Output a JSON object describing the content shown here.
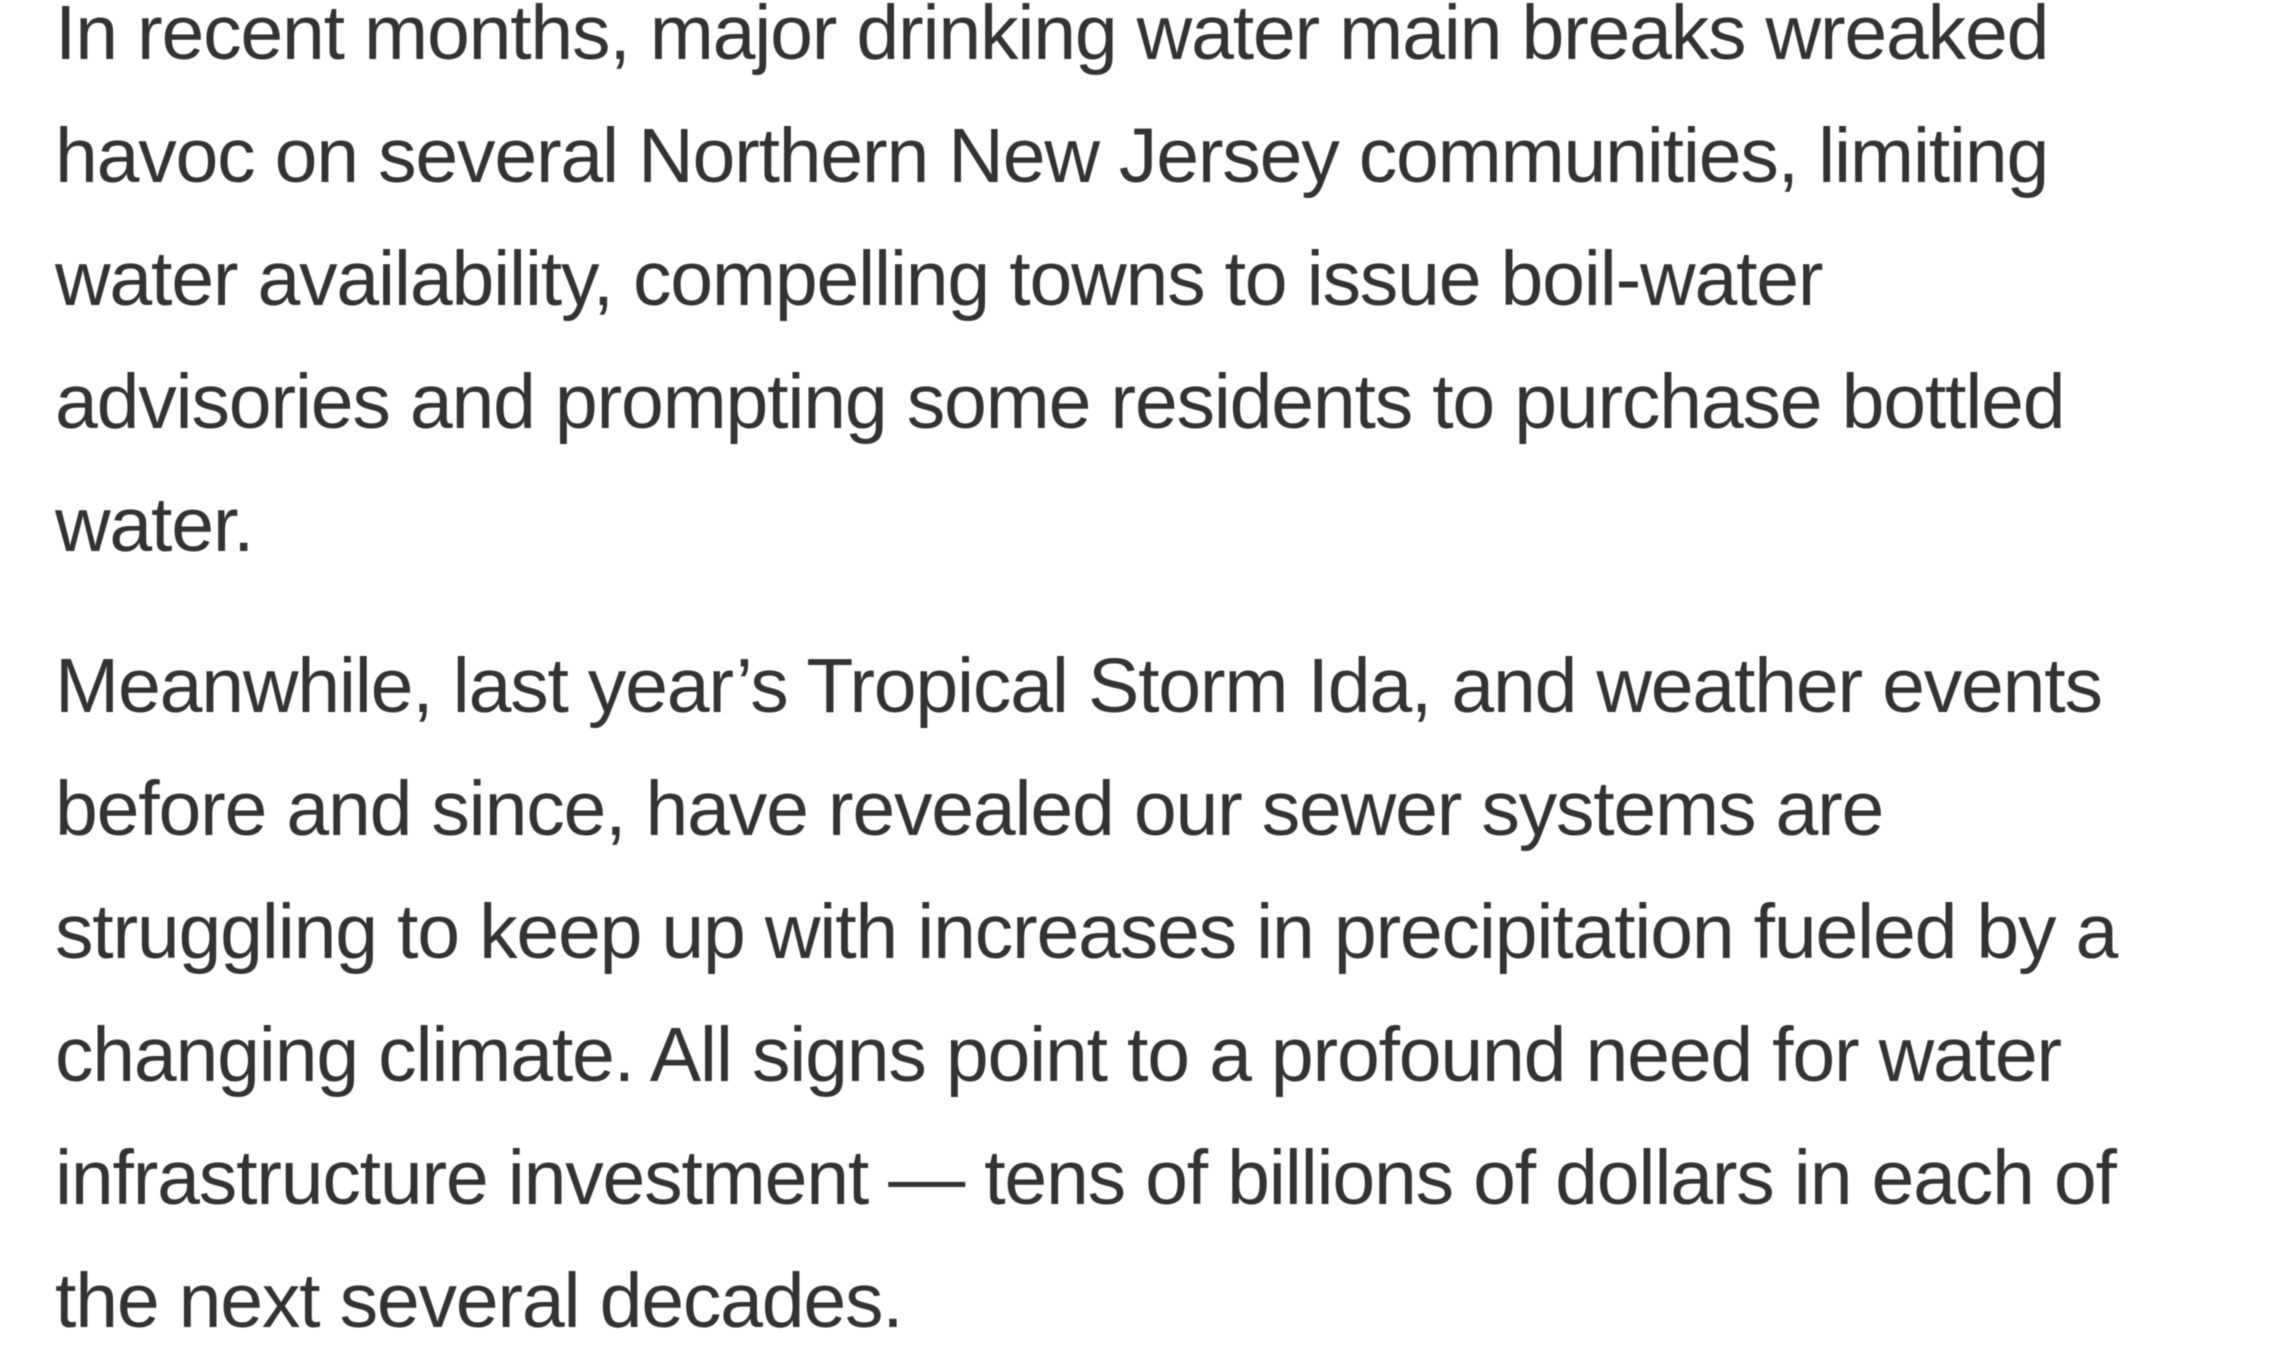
{
  "page": {
    "background_color": "#ffffff",
    "text_color": "#333333"
  },
  "article": {
    "paragraphs": [
      {
        "text": "In recent months, major drinking water main breaks wreaked havoc on several Northern New Jersey communities, limiting water availability, compelling towns to issue boil-water advisories and prompting some residents to purchase bottled water.",
        "lines": [
          "In recent months, major drinking water main breaks wreaked",
          "havoc on several Northern New Jersey communities, limiting",
          "water availability, compelling towns to issue boil-water",
          "advisories and prompting some residents to purchase bottled",
          "water."
        ]
      },
      {
        "text": "Meanwhile, last year’s Tropical Storm Ida, and weather events before and since, have revealed our sewer systems are struggling to keep up with increases in precipitation fueled by a changing climate. All signs point to a profound need for water infrastructure investment — tens of billions of dollars in each of the next several decades.",
        "lines": [
          "Meanwhile, last year’s Tropical Storm Ida, and weather events",
          "before and since, have revealed our sewer systems are",
          "struggling to keep up with increases in precipitation fueled by a",
          "changing climate. All signs point to a profound need for water",
          "infrastructure investment — tens of billions of dollars in each of",
          "the next several decades."
        ]
      }
    ]
  }
}
